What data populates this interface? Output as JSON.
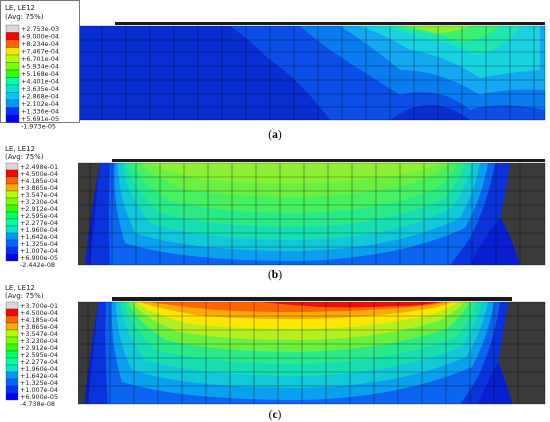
{
  "legend_colors": [
    "#0000ff",
    "#0032ff",
    "#0064ff",
    "#0096ff",
    "#00c8ff",
    "#00e6d2",
    "#00ffa0",
    "#00ff64",
    "#32ff00",
    "#78ff00",
    "#b4ff00",
    "#ffe600",
    "#ffaa00",
    "#ff6400",
    "#ff0000"
  ],
  "panels": [
    {
      "id": "a",
      "caption_open": "(",
      "caption_letter": "a",
      "caption_close": ")",
      "legend": {
        "title": "LE, LE12",
        "subtitle": "(Avg: 75%)",
        "labels": [
          "+2.753e-03",
          "+9.000e-04",
          "+8.234e-04",
          "+7.467e-04",
          "+6.701e-04",
          "+5.934e-04",
          "+5.168e-04",
          "+4.401e-04",
          "+3.635e-04",
          "+2.868e-04",
          "+2.102e-04",
          "+1.336e-04",
          "+5.691e-05",
          "-1.973e-05"
        ],
        "extra_top_color": "#d8d8d8"
      }
    },
    {
      "id": "b",
      "caption_open": "(",
      "caption_letter": "b",
      "caption_close": ")",
      "legend": {
        "title": "LE, LE12",
        "subtitle": "(Avg: 75%)",
        "labels": [
          "+2.498e-01",
          "+4.500e-04",
          "+4.185e-04",
          "+3.865e-04",
          "+3.547e-04",
          "+3.230e-04",
          "+2.912e-04",
          "+2.595e-04",
          "+2.277e-04",
          "+1.960e-04",
          "+1.642e-04",
          "+1.325e-04",
          "+1.007e-04",
          "+6.900e-05",
          "-2.442e-08"
        ],
        "extra_top_color": "#d8d8d8"
      }
    },
    {
      "id": "c",
      "caption_open": "(",
      "caption_letter": "c",
      "caption_close": ")",
      "legend": {
        "title": "LE, LE12",
        "subtitle": "(Avg: 75%)",
        "labels": [
          "+3.700e-01",
          "+4.500e-04",
          "+4.185e-04",
          "+3.865e-04",
          "+3.547e-04",
          "+3.230e-04",
          "+2.912e-04",
          "+2.595e-04",
          "+2.277e-04",
          "+1.960e-04",
          "+1.642e-04",
          "+1.325e-04",
          "+1.007e-04",
          "+6.900e-05",
          "-4.738e-08"
        ],
        "extra_top_color": "#d8d8d8"
      }
    }
  ]
}
